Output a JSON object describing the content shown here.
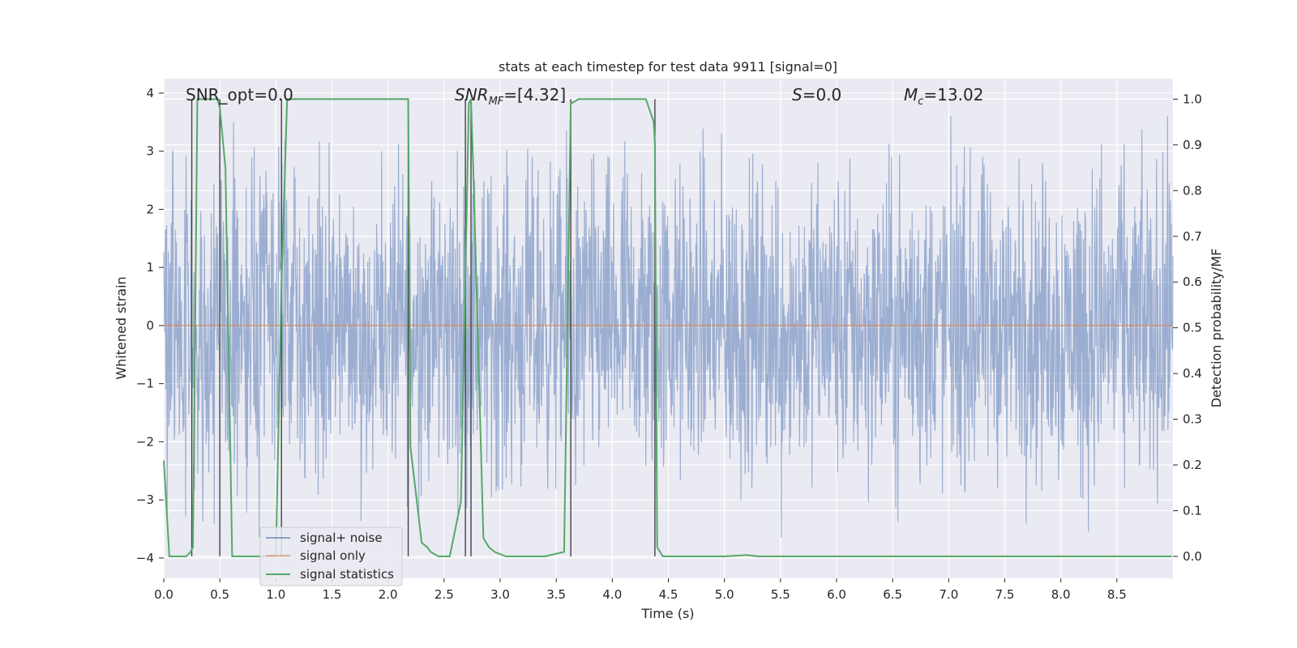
{
  "chart_data": {
    "type": "line",
    "title": "stats at each timestep for test data 9911 [signal=0]",
    "xlabel": "Time (s)",
    "ylabel_left": "Whitened strain",
    "ylabel_right": "Detection probability/MF",
    "xlim": [
      0.0,
      9.0
    ],
    "ylim_left": [
      -4.35,
      4.25
    ],
    "ylim_right": [
      -0.048,
      1.045
    ],
    "x_ticks": [
      "0.0",
      "0.5",
      "1.0",
      "1.5",
      "2.0",
      "2.5",
      "3.0",
      "3.5",
      "4.0",
      "4.5",
      "5.0",
      "5.5",
      "6.0",
      "6.5",
      "7.0",
      "7.5",
      "8.0",
      "8.5"
    ],
    "x_tick_values": [
      0.0,
      0.5,
      1.0,
      1.5,
      2.0,
      2.5,
      3.0,
      3.5,
      4.0,
      4.5,
      5.0,
      5.5,
      6.0,
      6.5,
      7.0,
      7.5,
      8.0,
      8.5
    ],
    "y_left_ticks": [
      "4",
      "3",
      "2",
      "1",
      "0",
      "−1",
      "−2",
      "−3",
      "−4"
    ],
    "y_left_tick_values": [
      4,
      3,
      2,
      1,
      0,
      -1,
      -2,
      -3,
      -4
    ],
    "y_right_ticks": [
      "1.0",
      "0.9",
      "0.8",
      "0.7",
      "0.6",
      "0.5",
      "0.4",
      "0.3",
      "0.2",
      "0.1",
      "0.0"
    ],
    "y_right_tick_values": [
      1.0,
      0.9,
      0.8,
      0.7,
      0.6,
      0.5,
      0.4,
      0.3,
      0.2,
      0.1,
      0.0
    ],
    "annotations": {
      "snr_opt": "SNR_opt=0.0",
      "snr_mf_main": "SNR",
      "snr_mf_sub": "MF",
      "snr_mf_value": "=[4.32]",
      "s_main": "S",
      "s_value": "=0.0",
      "mc_main": "M",
      "mc_sub": "c",
      "mc_value": "=13.02"
    },
    "grid": true,
    "legend_position": "lower-left",
    "series": [
      {
        "name": "signal+ noise",
        "color": "#4c72b0",
        "axis": "left",
        "style": "noise",
        "description_envelope": [
          -2.7,
          3.6
        ]
      },
      {
        "name": "signal only",
        "color": "#dd8452",
        "axis": "left",
        "values_constant": 0.0
      },
      {
        "name": "signal statistics",
        "color": "#55a868",
        "axis": "right",
        "x": [
          0.0,
          0.05,
          0.06,
          0.2,
          0.24,
          0.26,
          0.3,
          0.44,
          0.48,
          0.5,
          0.55,
          0.61,
          1.0,
          1.05,
          1.1,
          1.12,
          2.18,
          2.2,
          2.3,
          2.35,
          2.38,
          2.45,
          2.55,
          2.65,
          2.72,
          2.74,
          2.76,
          2.85,
          2.9,
          2.95,
          3.05,
          3.2,
          3.4,
          3.57,
          3.63,
          3.7,
          4.3,
          4.37,
          4.38,
          4.4,
          4.45,
          5.0,
          5.2,
          5.3,
          8.99
        ],
        "values": [
          0.21,
          0.0,
          0.0,
          0.0,
          0.01,
          0.02,
          1.0,
          1.0,
          1.0,
          0.98,
          0.85,
          0.0,
          0.0,
          0.6,
          1.0,
          1.0,
          1.0,
          0.24,
          0.03,
          0.02,
          0.01,
          0.0,
          0.0,
          0.12,
          0.99,
          1.0,
          0.85,
          0.04,
          0.02,
          0.01,
          0.0,
          0.0,
          0.0,
          0.01,
          0.99,
          1.0,
          1.0,
          0.95,
          0.9,
          0.02,
          0.0,
          0.0,
          0.003,
          0.0,
          0.0
        ]
      }
    ],
    "vertical_markers": {
      "color": "#444444",
      "segments": [
        {
          "x": 0.25,
          "y0": 0.0,
          "y1": 1.0
        },
        {
          "x": 0.5,
          "y0": 0.0,
          "y1": 1.0
        },
        {
          "x": 1.05,
          "y0": 0.0,
          "y1": 1.0
        },
        {
          "x": 2.18,
          "y0": 0.0,
          "y1": 1.0
        },
        {
          "x": 2.69,
          "y0": 0.0,
          "y1": 1.0
        },
        {
          "x": 2.74,
          "y0": 0.0,
          "y1": 1.0
        },
        {
          "x": 3.63,
          "y0": 0.0,
          "y1": 1.0
        },
        {
          "x": 4.38,
          "y0": 0.0,
          "y1": 1.0
        }
      ]
    }
  }
}
